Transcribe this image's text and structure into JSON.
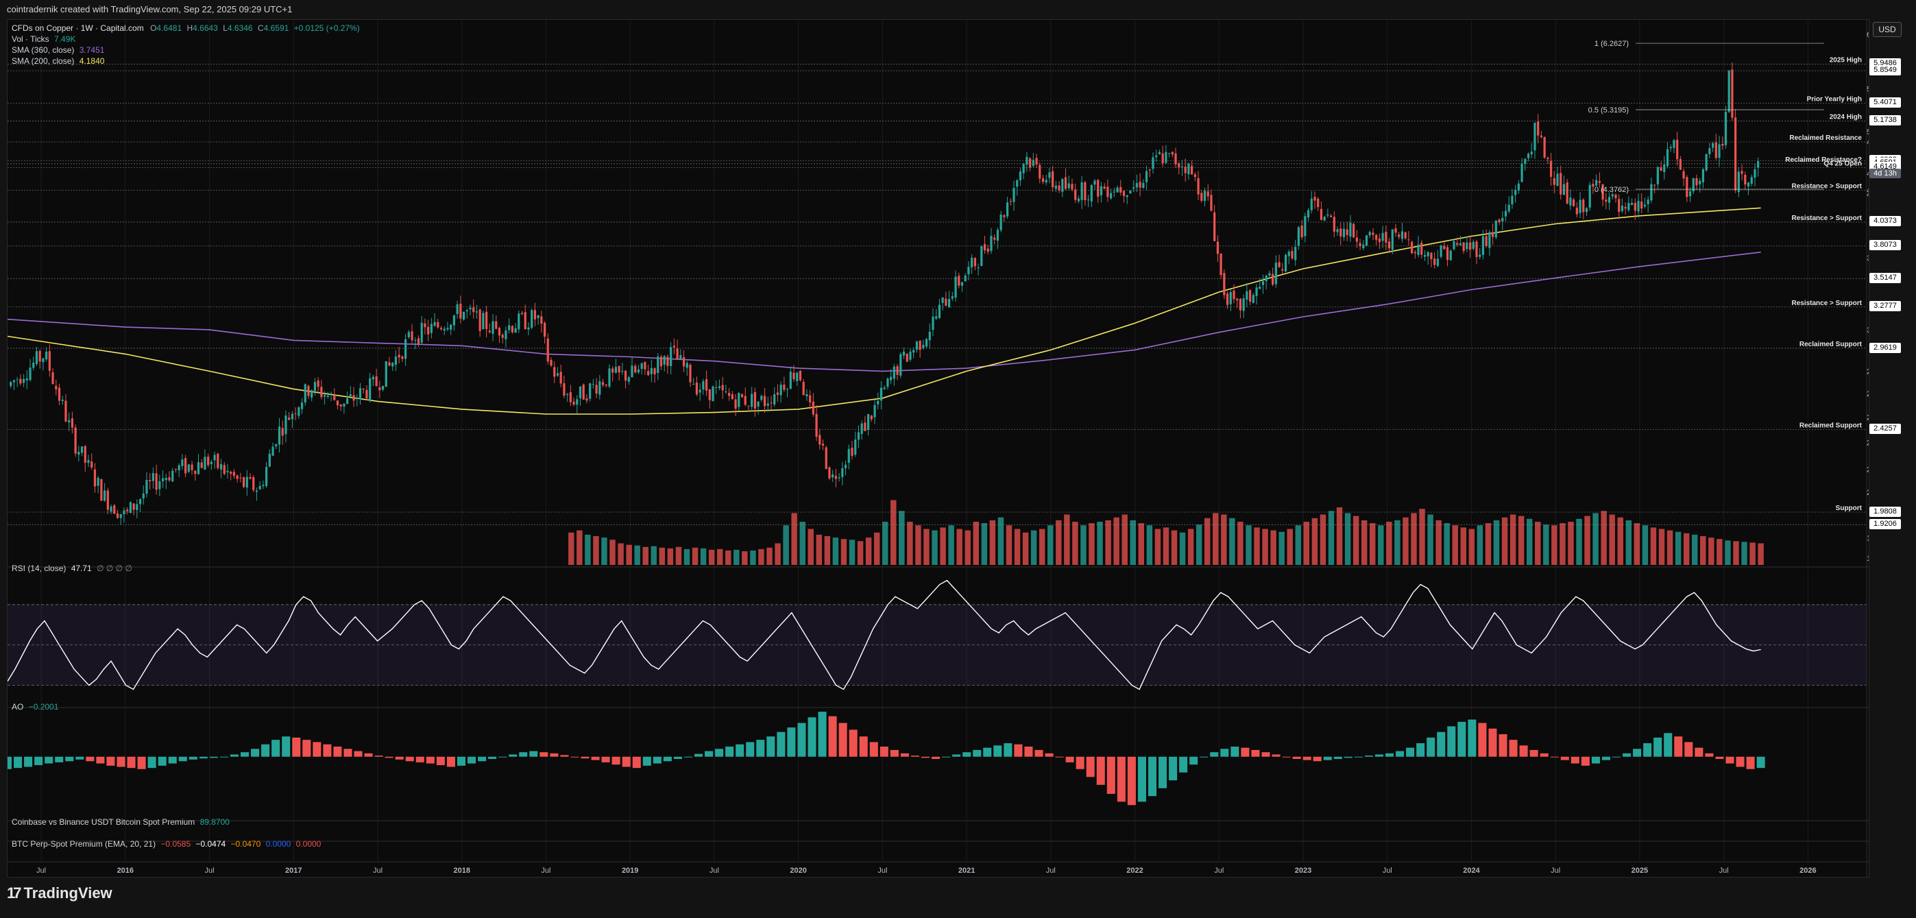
{
  "caption": "cointradernik created with TradingView.com, Sep 22, 2025 09:29 UTC+1",
  "brand": "TradingView",
  "currency_button": "USD",
  "legend": {
    "symbol": "CFDs on Copper · 1W · Capital.com",
    "o_label": "O",
    "o_value": "4.6481",
    "h_label": "H",
    "h_value": "4.6643",
    "l_label": "L",
    "l_value": "4.6346",
    "c_label": "C",
    "c_value": "4.6591",
    "change": "+0.0125 (+0.27%)",
    "vol_label": "Vol · Ticks",
    "vol_value": "7.49K",
    "sma360_label": "SMA (360, close)",
    "sma360_value": "3.7451",
    "sma200_label": "SMA (200, close)",
    "sma200_value": "4.1840"
  },
  "rsi_legend": {
    "label": "RSI (14, close)",
    "value": "47.71",
    "extra": "∅ ∅ ∅ ∅"
  },
  "ao_legend": {
    "label": "AO",
    "value": "−0.2001"
  },
  "coinbase_legend": {
    "label": "Coinbase vs Binance USDT Bitcoin Spot Premium",
    "value": "89.8700"
  },
  "btc_legend": {
    "label": "BTC Perp-Spot Premium (EMA, 20, 21)",
    "v1": "−0.0585",
    "v2": "−0.0474",
    "v3": "−0.0470",
    "v4": "0.0000",
    "v5": "0.0000"
  },
  "colors": {
    "up": "#26a69a",
    "down": "#ef5350",
    "sma200": "#f5e663",
    "sma360": "#9c6cd6",
    "rsi_band": "#7e57c2",
    "badge": "#ffffff"
  },
  "chart_data": [
    {
      "type": "candlestick",
      "title": "CFDs on Copper · 1W · Capital.com",
      "x_ticks": [
        "Jul",
        "2016",
        "Jul",
        "2017",
        "Jul",
        "2018",
        "Jul",
        "2019",
        "Jul",
        "2020",
        "Jul",
        "2021",
        "Jul",
        "2022",
        "Jul",
        "2023",
        "Jul",
        "2024",
        "Jul",
        "2025",
        "Jul",
        "2026"
      ],
      "x_range": [
        2015.3,
        2026.3
      ],
      "y_scale": "log",
      "y_ticks": [
        "6.4000",
        "5.6000",
        "5.0407",
        "4.9157",
        "4.5500",
        "4.3645",
        "4.3203",
        "3.7000",
        "3.1000",
        "2.8000",
        "2.6500",
        "2.5000",
        "2.3500",
        "2.2000",
        "2.0800",
        "1.8600",
        "1.7700"
      ],
      "ylim": [
        1.74,
        6.5
      ],
      "price_points": [
        [
          2015.3,
          2.7
        ],
        [
          2015.52,
          2.92
        ],
        [
          2015.7,
          2.35
        ],
        [
          2015.88,
          2.05
        ],
        [
          2016.0,
          1.96
        ],
        [
          2016.15,
          2.12
        ],
        [
          2016.3,
          2.2
        ],
        [
          2016.5,
          2.25
        ],
        [
          2016.7,
          2.12
        ],
        [
          2016.8,
          2.1
        ],
        [
          2016.9,
          2.4
        ],
        [
          2017.0,
          2.55
        ],
        [
          2017.1,
          2.7
        ],
        [
          2017.3,
          2.58
        ],
        [
          2017.5,
          2.72
        ],
        [
          2017.7,
          3.05
        ],
        [
          2017.85,
          3.12
        ],
        [
          2018.0,
          3.25
        ],
        [
          2018.2,
          3.1
        ],
        [
          2018.45,
          3.2
        ],
        [
          2018.52,
          2.85
        ],
        [
          2018.65,
          2.6
        ],
        [
          2018.85,
          2.75
        ],
        [
          2019.1,
          2.8
        ],
        [
          2019.25,
          2.93
        ],
        [
          2019.4,
          2.7
        ],
        [
          2019.6,
          2.62
        ],
        [
          2019.8,
          2.6
        ],
        [
          2020.0,
          2.82
        ],
        [
          2020.05,
          2.6
        ],
        [
          2020.2,
          2.15
        ],
        [
          2020.3,
          2.3
        ],
        [
          2020.45,
          2.55
        ],
        [
          2020.6,
          2.85
        ],
        [
          2020.75,
          3.05
        ],
        [
          2020.9,
          3.4
        ],
        [
          2021.05,
          3.65
        ],
        [
          2021.2,
          4.05
        ],
        [
          2021.35,
          4.75
        ],
        [
          2021.5,
          4.45
        ],
        [
          2021.65,
          4.35
        ],
        [
          2021.85,
          4.4
        ],
        [
          2022.0,
          4.4
        ],
        [
          2022.15,
          4.75
        ],
        [
          2022.3,
          4.65
        ],
        [
          2022.45,
          4.2
        ],
        [
          2022.52,
          3.45
        ],
        [
          2022.6,
          3.25
        ],
        [
          2022.75,
          3.45
        ],
        [
          2022.9,
          3.65
        ],
        [
          2023.05,
          4.2
        ],
        [
          2023.2,
          4.0
        ],
        [
          2023.4,
          3.85
        ],
        [
          2023.6,
          3.9
        ],
        [
          2023.75,
          3.7
        ],
        [
          2023.9,
          3.8
        ],
        [
          2024.05,
          3.8
        ],
        [
          2024.2,
          4.1
        ],
        [
          2024.32,
          4.7
        ],
        [
          2024.38,
          5.05
        ],
        [
          2024.5,
          4.5
        ],
        [
          2024.62,
          4.1
        ],
        [
          2024.75,
          4.45
        ],
        [
          2024.9,
          4.1
        ],
        [
          2025.05,
          4.25
        ],
        [
          2025.2,
          4.95
        ],
        [
          2025.28,
          4.25
        ],
        [
          2025.4,
          4.7
        ],
        [
          2025.5,
          4.95
        ],
        [
          2025.53,
          5.85
        ],
        [
          2025.57,
          4.45
        ],
        [
          2025.65,
          4.55
        ],
        [
          2025.72,
          4.66
        ]
      ],
      "sma200_points": [
        [
          2015.3,
          3.05
        ],
        [
          2016.0,
          2.92
        ],
        [
          2016.5,
          2.8
        ],
        [
          2017.0,
          2.68
        ],
        [
          2017.5,
          2.6
        ],
        [
          2018.0,
          2.55
        ],
        [
          2018.5,
          2.52
        ],
        [
          2019.0,
          2.52
        ],
        [
          2019.5,
          2.53
        ],
        [
          2020.0,
          2.55
        ],
        [
          2020.5,
          2.62
        ],
        [
          2021.0,
          2.8
        ],
        [
          2021.5,
          2.95
        ],
        [
          2022.0,
          3.15
        ],
        [
          2022.5,
          3.4
        ],
        [
          2023.0,
          3.6
        ],
        [
          2023.5,
          3.75
        ],
        [
          2024.0,
          3.9
        ],
        [
          2024.5,
          4.02
        ],
        [
          2025.0,
          4.1
        ],
        [
          2025.72,
          4.18
        ]
      ],
      "sma360_points": [
        [
          2015.3,
          3.18
        ],
        [
          2016.0,
          3.12
        ],
        [
          2016.5,
          3.1
        ],
        [
          2017.0,
          3.02
        ],
        [
          2017.5,
          3.0
        ],
        [
          2018.0,
          2.98
        ],
        [
          2018.5,
          2.92
        ],
        [
          2019.0,
          2.9
        ],
        [
          2019.5,
          2.87
        ],
        [
          2020.0,
          2.82
        ],
        [
          2020.5,
          2.8
        ],
        [
          2021.0,
          2.82
        ],
        [
          2021.5,
          2.88
        ],
        [
          2022.0,
          2.95
        ],
        [
          2022.5,
          3.08
        ],
        [
          2023.0,
          3.2
        ],
        [
          2023.5,
          3.3
        ],
        [
          2024.0,
          3.42
        ],
        [
          2024.5,
          3.52
        ],
        [
          2025.0,
          3.62
        ],
        [
          2025.72,
          3.75
        ]
      ],
      "levels": [
        {
          "label": "2025 High",
          "value": 5.9486,
          "tag": "5.9486"
        },
        {
          "label": "",
          "value": 5.8549,
          "tag": "5.8549"
        },
        {
          "label": "Prior Yearly High",
          "value": 5.4071,
          "tag": "5.4071"
        },
        {
          "label": "2024 High",
          "value": 5.1738,
          "tag": "5.1738"
        },
        {
          "label": "Reclaimed Resistance",
          "value": 4.9157,
          "tag": ""
        },
        {
          "label": "",
          "value": 4.6922,
          "tag": "4.6922"
        },
        {
          "label": "Reclaimed Resistance?",
          "value": 4.6591,
          "tag": "4.6591"
        },
        {
          "label": "Q4 25 Open",
          "value": 4.6149,
          "tag": "4.6149"
        },
        {
          "label": "Resistance > Support",
          "value": 4.3645,
          "tag": ""
        },
        {
          "label": "Resistance > Support",
          "value": 4.0373,
          "tag": "4.0373"
        },
        {
          "label": "",
          "value": 3.8073,
          "tag": "3.8073"
        },
        {
          "label": "",
          "value": 3.5147,
          "tag": "3.5147"
        },
        {
          "label": "Resistance > Support",
          "value": 3.2777,
          "tag": "3.2777"
        },
        {
          "label": "Reclaimed Support",
          "value": 2.9619,
          "tag": "2.9619"
        },
        {
          "label": "Reclaimed Support",
          "value": 2.4257,
          "tag": "2.4257"
        },
        {
          "label": "Support",
          "value": 1.9808,
          "tag": "1.9808"
        },
        {
          "label": "",
          "value": 1.9206,
          "tag": "1.9206"
        }
      ],
      "fib_labels": [
        {
          "label": "1 (6.2627)",
          "value": 6.2627
        },
        {
          "label": "0.5 (5.3195)",
          "value": 5.3195
        },
        {
          "label": "0 (4.3762)",
          "value": 4.3762
        }
      ],
      "price_tag": {
        "value": "4.6591",
        "countdown": "4d 13h"
      }
    },
    {
      "type": "bar",
      "title": "Vol · Ticks",
      "x_range": [
        2015.3,
        2026.3
      ],
      "start": 2018.65,
      "values": [
        0.45,
        0.48,
        0.42,
        0.4,
        0.38,
        0.35,
        0.3,
        0.28,
        0.27,
        0.25,
        0.26,
        0.24,
        0.23,
        0.25,
        0.22,
        0.24,
        0.23,
        0.21,
        0.22,
        0.2,
        0.21,
        0.19,
        0.2,
        0.22,
        0.24,
        0.3,
        0.55,
        0.72,
        0.6,
        0.5,
        0.42,
        0.4,
        0.38,
        0.36,
        0.35,
        0.33,
        0.38,
        0.45,
        0.6,
        0.9,
        0.75,
        0.6,
        0.55,
        0.5,
        0.48,
        0.52,
        0.55,
        0.5,
        0.48,
        0.6,
        0.58,
        0.62,
        0.66,
        0.55,
        0.5,
        0.45,
        0.48,
        0.5,
        0.55,
        0.62,
        0.7,
        0.6,
        0.55,
        0.58,
        0.6,
        0.62,
        0.66,
        0.7,
        0.62,
        0.58,
        0.55,
        0.5,
        0.52,
        0.48,
        0.45,
        0.5,
        0.56,
        0.65,
        0.72,
        0.7,
        0.65,
        0.6,
        0.55,
        0.52,
        0.5,
        0.48,
        0.46,
        0.5,
        0.55,
        0.6,
        0.65,
        0.7,
        0.75,
        0.8,
        0.72,
        0.68,
        0.62,
        0.58,
        0.55,
        0.6,
        0.62,
        0.66,
        0.72,
        0.78,
        0.7,
        0.62,
        0.58,
        0.55,
        0.52,
        0.5,
        0.55,
        0.58,
        0.62,
        0.66,
        0.7,
        0.68,
        0.64,
        0.6,
        0.56,
        0.55,
        0.58,
        0.6,
        0.64,
        0.68,
        0.72,
        0.75,
        0.7,
        0.66,
        0.62,
        0.58,
        0.55,
        0.52,
        0.5,
        0.48,
        0.46,
        0.44,
        0.42,
        0.4,
        0.38,
        0.36,
        0.34,
        0.33,
        0.32,
        0.31,
        0.3
      ]
    },
    {
      "type": "line",
      "title": "RSI (14, close)",
      "y_ticks": [
        "80.00",
        "60.00",
        "40.00",
        "32.50",
        "24.50"
      ],
      "ylim": [
        20,
        88
      ],
      "band": [
        30,
        70
      ],
      "midline": 50,
      "values": [
        32,
        38,
        45,
        52,
        58,
        62,
        56,
        50,
        44,
        38,
        34,
        30,
        33,
        38,
        42,
        36,
        30,
        28,
        34,
        40,
        46,
        50,
        54,
        58,
        55,
        50,
        46,
        44,
        48,
        52,
        56,
        60,
        58,
        54,
        50,
        46,
        50,
        56,
        62,
        70,
        74,
        72,
        66,
        62,
        58,
        55,
        60,
        64,
        60,
        56,
        52,
        55,
        58,
        62,
        66,
        70,
        72,
        68,
        62,
        56,
        50,
        48,
        52,
        58,
        62,
        66,
        70,
        74,
        72,
        68,
        64,
        60,
        56,
        52,
        48,
        44,
        40,
        38,
        36,
        40,
        46,
        52,
        58,
        62,
        56,
        50,
        44,
        40,
        38,
        42,
        46,
        50,
        54,
        58,
        62,
        60,
        56,
        52,
        48,
        44,
        42,
        46,
        50,
        54,
        58,
        62,
        66,
        60,
        54,
        48,
        42,
        36,
        30,
        28,
        34,
        42,
        50,
        58,
        64,
        70,
        74,
        72,
        70,
        68,
        72,
        76,
        80,
        82,
        78,
        74,
        70,
        66,
        62,
        58,
        56,
        60,
        62,
        58,
        55,
        58,
        60,
        62,
        64,
        66,
        62,
        58,
        54,
        50,
        46,
        42,
        38,
        34,
        30,
        28,
        36,
        44,
        52,
        56,
        60,
        58,
        55,
        60,
        66,
        72,
        76,
        74,
        70,
        66,
        62,
        58,
        60,
        62,
        58,
        54,
        50,
        48,
        46,
        50,
        54,
        56,
        58,
        60,
        62,
        64,
        60,
        56,
        54,
        58,
        64,
        70,
        76,
        80,
        78,
        72,
        66,
        60,
        56,
        52,
        48,
        54,
        60,
        66,
        62,
        56,
        50,
        48,
        46,
        50,
        54,
        60,
        66,
        70,
        74,
        72,
        68,
        64,
        60,
        56,
        52,
        50,
        48,
        50,
        54,
        58,
        62,
        66,
        70,
        74,
        76,
        72,
        66,
        60,
        56,
        52,
        50,
        48,
        47,
        47.71
      ]
    },
    {
      "type": "bar",
      "title": "AO",
      "y_ticks": [
        "0.5000",
        "0.0000",
        "−0.5000",
        "−1.0000"
      ],
      "ylim": [
        -1.1,
        0.85
      ],
      "values": [
        -0.22,
        -0.2,
        -0.18,
        -0.15,
        -0.12,
        -0.1,
        -0.08,
        -0.05,
        -0.08,
        -0.12,
        -0.16,
        -0.18,
        -0.2,
        -0.22,
        -0.2,
        -0.16,
        -0.12,
        -0.08,
        -0.05,
        -0.03,
        -0.02,
        0.0,
        0.04,
        0.08,
        0.14,
        0.22,
        0.3,
        0.36,
        0.34,
        0.3,
        0.26,
        0.22,
        0.18,
        0.14,
        0.1,
        0.06,
        0.02,
        -0.02,
        -0.05,
        -0.08,
        -0.1,
        -0.12,
        -0.15,
        -0.18,
        -0.16,
        -0.12,
        -0.08,
        -0.04,
        0.0,
        0.04,
        0.08,
        0.1,
        0.08,
        0.06,
        0.03,
        0.0,
        -0.03,
        -0.06,
        -0.1,
        -0.14,
        -0.18,
        -0.2,
        -0.16,
        -0.12,
        -0.08,
        -0.04,
        0.0,
        0.05,
        0.1,
        0.14,
        0.18,
        0.22,
        0.26,
        0.3,
        0.36,
        0.44,
        0.52,
        0.6,
        0.7,
        0.8,
        0.72,
        0.6,
        0.48,
        0.36,
        0.26,
        0.18,
        0.12,
        0.06,
        0.02,
        -0.02,
        -0.04,
        0.0,
        0.04,
        0.08,
        0.12,
        0.16,
        0.2,
        0.24,
        0.22,
        0.18,
        0.12,
        0.06,
        0.0,
        -0.1,
        -0.22,
        -0.36,
        -0.5,
        -0.66,
        -0.8,
        -0.86,
        -0.8,
        -0.7,
        -0.56,
        -0.42,
        -0.28,
        -0.14,
        0.0,
        0.08,
        0.14,
        0.18,
        0.16,
        0.12,
        0.08,
        0.04,
        0.0,
        -0.04,
        -0.06,
        -0.08,
        -0.06,
        -0.04,
        -0.02,
        0.0,
        0.02,
        0.04,
        0.06,
        0.1,
        0.16,
        0.24,
        0.34,
        0.44,
        0.54,
        0.62,
        0.66,
        0.6,
        0.5,
        0.4,
        0.3,
        0.2,
        0.12,
        0.06,
        0.0,
        -0.06,
        -0.12,
        -0.16,
        -0.12,
        -0.06,
        0.0,
        0.06,
        0.14,
        0.24,
        0.34,
        0.42,
        0.36,
        0.26,
        0.16,
        0.06,
        -0.04,
        -0.12,
        -0.18,
        -0.22,
        -0.2001
      ]
    }
  ]
}
